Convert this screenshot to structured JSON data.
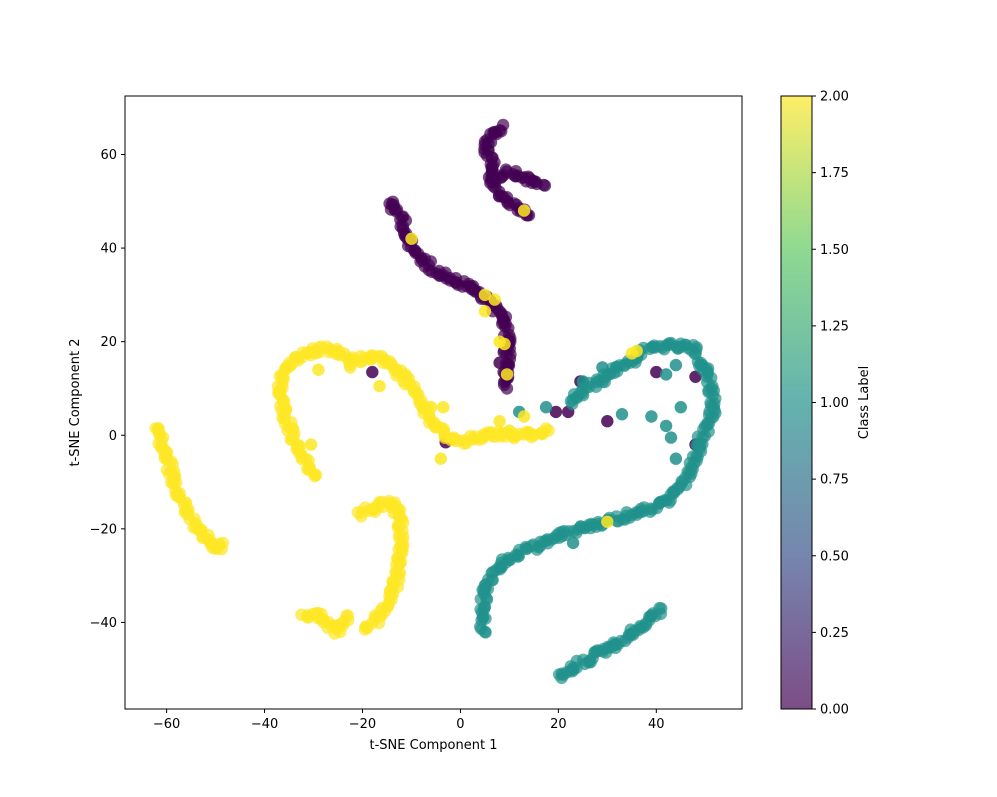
{
  "chart_data": {
    "type": "scatter",
    "title": "",
    "xlabel": "t-SNE Component 1",
    "ylabel": "t-SNE Component 2",
    "xlim": [
      -68.5,
      57.5
    ],
    "ylim": [
      -58.5,
      72.5
    ],
    "x_ticks": [
      -60,
      -40,
      -20,
      0,
      20,
      40
    ],
    "x_tick_labels": [
      "−60",
      "−40",
      "−20",
      "0",
      "20",
      "40"
    ],
    "y_ticks": [
      -40,
      -20,
      0,
      20,
      40,
      60
    ],
    "y_tick_labels": [
      "−40",
      "−20",
      "0",
      "20",
      "40",
      "60"
    ],
    "grid": false,
    "colormap": "viridis",
    "colormap_stops": [
      "#440154",
      "#3b528b",
      "#21918c",
      "#5ec962",
      "#fde725"
    ],
    "point_alpha": 0.7,
    "colorbar": {
      "label": "Class Label",
      "range": [
        0.0,
        2.0
      ],
      "ticks": [
        0.0,
        0.25,
        0.5,
        0.75,
        1.0,
        1.25,
        1.5,
        1.75,
        2.0
      ],
      "tick_labels": [
        "0.00",
        "0.25",
        "0.50",
        "0.75",
        "1.00",
        "1.25",
        "1.50",
        "1.75",
        "2.00"
      ]
    },
    "series": [
      {
        "class": 0,
        "color": "#440154",
        "paths": [
          [
            [
              8.5,
              66
            ],
            [
              6,
              64
            ],
            [
              5,
              61
            ],
            [
              6.5,
              58
            ],
            [
              6,
              55
            ],
            [
              7.5,
              52
            ],
            [
              10,
              50
            ],
            [
              12,
              48.5
            ],
            [
              14,
              47
            ]
          ],
          [
            [
              7.5,
              55
            ],
            [
              10,
              56.5
            ],
            [
              14,
              54.5
            ],
            [
              17,
              53.5
            ]
          ],
          [
            [
              -14.5,
              50
            ],
            [
              -12,
              46.5
            ],
            [
              -11,
              43
            ],
            [
              -10,
              40
            ],
            [
              -7.5,
              37
            ],
            [
              -4,
              34.5
            ],
            [
              -0.5,
              33
            ],
            [
              3,
              31
            ],
            [
              6,
              28.5
            ],
            [
              8.5,
              26
            ],
            [
              9.5,
              22
            ],
            [
              9.5,
              18
            ],
            [
              9.5,
              14
            ],
            [
              9.5,
              10
            ]
          ]
        ],
        "extra_points": [
          [
            -3,
            -1.5
          ],
          [
            -18,
            13.5
          ],
          [
            30,
            3
          ],
          [
            48,
            -2
          ],
          [
            40,
            13.5
          ],
          [
            48,
            12.5
          ],
          [
            24.5,
            11.5
          ],
          [
            22,
            5
          ],
          [
            8,
            15.5
          ],
          [
            19.5,
            5
          ]
        ]
      },
      {
        "class": 1,
        "color": "#21918c",
        "paths": [
          [
            [
              22.5,
              7
            ],
            [
              26,
              10
            ],
            [
              28.5,
              11.5
            ],
            [
              32,
              14.5
            ],
            [
              34,
              15.5
            ],
            [
              37,
              17.5
            ],
            [
              40,
              19
            ],
            [
              44,
              19
            ],
            [
              47.5,
              18.5
            ],
            [
              49,
              16
            ],
            [
              50,
              14
            ],
            [
              51,
              11
            ],
            [
              51.5,
              8
            ],
            [
              51.5,
              5
            ],
            [
              50.5,
              2
            ],
            [
              49,
              -1
            ],
            [
              48,
              -4
            ],
            [
              47,
              -7
            ],
            [
              45.5,
              -10
            ],
            [
              44,
              -12
            ],
            [
              42,
              -14
            ],
            [
              40,
              -15
            ],
            [
              37,
              -16.5
            ],
            [
              33,
              -17.5
            ],
            [
              30,
              -18.5
            ],
            [
              27,
              -19.5
            ],
            [
              24,
              -20
            ],
            [
              20,
              -21.5
            ],
            [
              17,
              -23
            ],
            [
              14,
              -24.5
            ],
            [
              11,
              -26
            ],
            [
              8,
              -28
            ],
            [
              5.5,
              -31.5
            ],
            [
              4.5,
              -36
            ],
            [
              4.5,
              -39.5
            ],
            [
              5,
              -42
            ]
          ],
          [
            [
              20.5,
              -52
            ],
            [
              23,
              -50
            ],
            [
              27,
              -47
            ],
            [
              31,
              -45
            ],
            [
              35,
              -42.5
            ],
            [
              38,
              -40
            ],
            [
              40,
              -38
            ],
            [
              41,
              -37
            ]
          ]
        ],
        "extra_points": [
          [
            12,
            5
          ],
          [
            25,
            11.5
          ],
          [
            29,
            14.5
          ],
          [
            17.5,
            6
          ],
          [
            33,
            4.5
          ],
          [
            44,
            15
          ],
          [
            42,
            13
          ],
          [
            39,
            4
          ],
          [
            42,
            2
          ],
          [
            45,
            6
          ],
          [
            23,
            -23
          ],
          [
            43,
            -0.5
          ],
          [
            44,
            -5
          ]
        ]
      },
      {
        "class": 2,
        "color": "#fde725",
        "paths": [
          [
            [
              -62,
              2
            ],
            [
              -61,
              -2
            ],
            [
              -59.5,
              -6
            ],
            [
              -58.5,
              -10
            ],
            [
              -57,
              -13
            ],
            [
              -56,
              -16
            ],
            [
              -54.5,
              -19
            ],
            [
              -52,
              -22
            ],
            [
              -50,
              -24.5
            ],
            [
              -48.5,
              -23
            ]
          ],
          [
            [
              -22,
              15
            ],
            [
              -26,
              18.5
            ],
            [
              -30,
              18
            ],
            [
              -34,
              16
            ],
            [
              -36.5,
              13
            ],
            [
              -37,
              9
            ],
            [
              -36,
              5
            ],
            [
              -34.5,
              1
            ],
            [
              -33,
              -3
            ],
            [
              -31.5,
              -6
            ],
            [
              -29.5,
              -8.5
            ]
          ],
          [
            [
              -22,
              16
            ],
            [
              -17.5,
              17
            ],
            [
              -14,
              15
            ],
            [
              -11,
              11.5
            ],
            [
              -9,
              8
            ],
            [
              -7,
              5
            ],
            [
              -5.5,
              2
            ],
            [
              -3,
              0
            ],
            [
              0,
              -1.5
            ],
            [
              3,
              -0.5
            ],
            [
              6,
              0.5
            ],
            [
              9,
              0
            ],
            [
              12,
              0
            ],
            [
              15,
              0
            ],
            [
              18,
              1
            ]
          ],
          [
            [
              -20.5,
              -17
            ],
            [
              -16.5,
              -15
            ],
            [
              -13.5,
              -14.5
            ],
            [
              -12.5,
              -18
            ],
            [
              -12,
              -22
            ],
            [
              -12.5,
              -26
            ],
            [
              -13,
              -30
            ],
            [
              -14,
              -34
            ],
            [
              -15.5,
              -37.5
            ],
            [
              -17.5,
              -40
            ],
            [
              -19.5,
              -41.5
            ]
          ],
          [
            [
              -32,
              -38.5
            ],
            [
              -30,
              -38
            ],
            [
              -27,
              -40.5
            ],
            [
              -25,
              -42
            ],
            [
              -23,
              -38.5
            ]
          ]
        ],
        "extra_points": [
          [
            -6,
            6
          ],
          [
            -3.5,
            6
          ],
          [
            -4,
            -5
          ],
          [
            10,
            1
          ],
          [
            -30.5,
            -2
          ],
          [
            5,
            30
          ],
          [
            7,
            29
          ],
          [
            5,
            26.5
          ],
          [
            8,
            20
          ],
          [
            9,
            19.5
          ],
          [
            9.5,
            13
          ],
          [
            8,
            3
          ],
          [
            13,
            4
          ],
          [
            35,
            17.5
          ],
          [
            36,
            18
          ],
          [
            -10,
            42
          ],
          [
            13,
            48
          ],
          [
            30,
            -18.5
          ],
          [
            -16.5,
            10.5
          ],
          [
            -29,
            14
          ]
        ]
      }
    ]
  }
}
